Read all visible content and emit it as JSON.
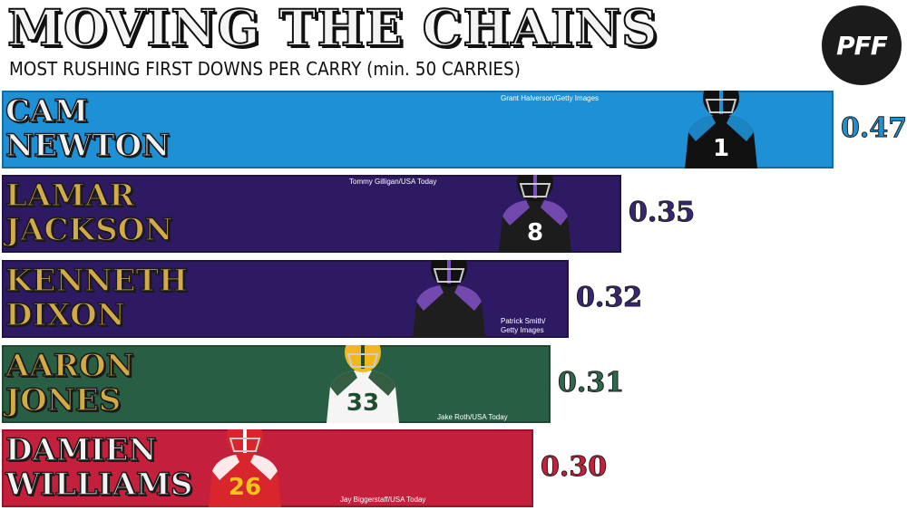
{
  "title": "MOVING THE CHAINS",
  "subtitle": "MOST RUSHING FIRST DOWNS PER CARRY (min. 50 CARRIES)",
  "logo_text": "PFF",
  "chart_data": {
    "type": "bar",
    "orientation": "horizontal",
    "title": "MOVING THE CHAINS",
    "subtitle": "MOST RUSHING FIRST DOWNS PER CARRY (min. 50 CARRIES)",
    "categories": [
      "CAM\nNEWTON",
      "LAMAR\nJACKSON",
      "KENNETH\nDIXON",
      "AARON\nJONES",
      "DAMIEN\nWILLIAMS"
    ],
    "values": [
      0.47,
      0.35,
      0.32,
      0.31,
      0.3
    ],
    "value_labels": [
      "0.47",
      "0.35",
      "0.32",
      "0.31",
      "0.30"
    ],
    "bar_colors": [
      "#1e91d6",
      "#2d1a63",
      "#2d1a63",
      "#285e43",
      "#c41f3b"
    ],
    "name_colors": [
      "#f2f2f2",
      "#d4aa46",
      "#d4aa46",
      "#d4aa46",
      "#f2f2f2"
    ],
    "value_colors": [
      "#1e91d6",
      "#3a2477",
      "#3a2477",
      "#2b6a4a",
      "#c41f3b"
    ],
    "credits": [
      "Grant Halverson/Getty Images",
      "Tommy Gilligan/USA Today",
      "Patrick Smith/\nGetty Images",
      "Jake Roth/USA Today",
      "Jay Biggerstaff/USA Today"
    ],
    "xlim": [
      0,
      0.5
    ]
  }
}
